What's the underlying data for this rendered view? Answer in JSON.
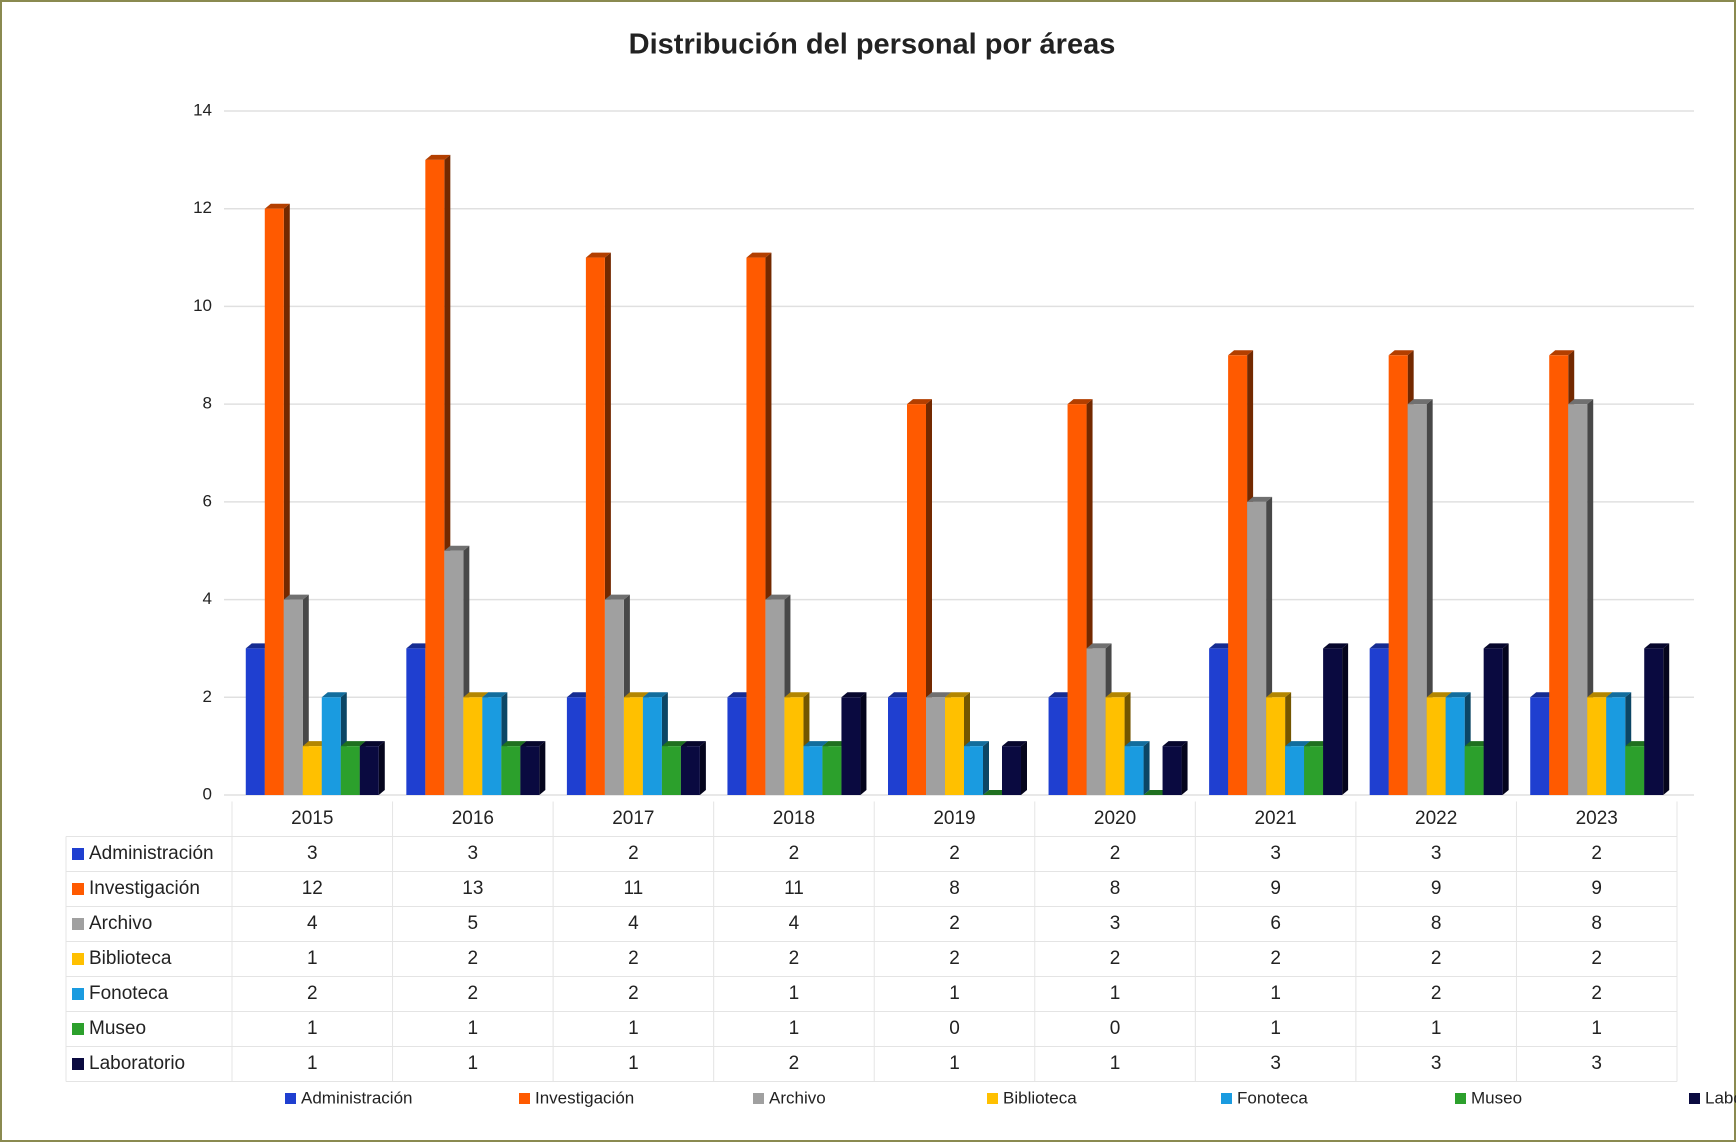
{
  "chart_data": {
    "type": "bar3d",
    "title": "Distribución del personal por áreas",
    "categories": [
      "2015",
      "2016",
      "2017",
      "2018",
      "2019",
      "2020",
      "2021",
      "2022",
      "2023"
    ],
    "series": [
      {
        "name": "Administración",
        "color": "#1f3fd0",
        "values": [
          3,
          3,
          2,
          2,
          2,
          2,
          3,
          3,
          2
        ]
      },
      {
        "name": "Investigación",
        "color": "#ff5a00",
        "values": [
          12,
          13,
          11,
          11,
          8,
          8,
          9,
          9,
          9
        ]
      },
      {
        "name": "Archivo",
        "color": "#a0a0a0",
        "values": [
          4,
          5,
          4,
          4,
          2,
          3,
          6,
          8,
          8
        ]
      },
      {
        "name": "Biblioteca",
        "color": "#ffc000",
        "values": [
          1,
          2,
          2,
          2,
          2,
          2,
          2,
          2,
          2
        ]
      },
      {
        "name": "Fonoteca",
        "color": "#1a9be0",
        "values": [
          2,
          2,
          2,
          1,
          1,
          1,
          1,
          2,
          2
        ]
      },
      {
        "name": "Museo",
        "color": "#2ca02c",
        "values": [
          1,
          1,
          1,
          1,
          0,
          0,
          1,
          1,
          1
        ]
      },
      {
        "name": "Laboratorio",
        "color": "#0a0a40",
        "values": [
          1,
          1,
          1,
          2,
          1,
          1,
          3,
          3,
          3
        ]
      }
    ],
    "ylim": [
      0,
      14
    ],
    "yticks": [
      0,
      2,
      4,
      6,
      8,
      10,
      12,
      14
    ],
    "grid": true,
    "legend": "bottom"
  }
}
